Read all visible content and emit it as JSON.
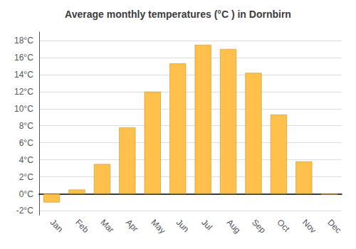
{
  "chart_data": {
    "type": "bar",
    "title": "Average monthly temperatures (°C ) in Dornbirn",
    "categories": [
      "Jan",
      "Feb",
      "Mar",
      "Apr",
      "May",
      "Jun",
      "Jul",
      "Aug",
      "Sep",
      "Oct",
      "Nov",
      "Dec"
    ],
    "values": [
      -1.0,
      0.5,
      3.5,
      7.8,
      12.0,
      15.3,
      17.5,
      17.0,
      14.2,
      9.3,
      3.8,
      -0.1
    ],
    "color": "#FFC04C",
    "ylim": [
      -2.5,
      19
    ],
    "yticks": [
      {
        "value": -2,
        "label": "-2°C"
      },
      {
        "value": 0,
        "label": "0°C"
      },
      {
        "value": 2,
        "label": "2°C"
      },
      {
        "value": 4,
        "label": "4°C"
      },
      {
        "value": 6,
        "label": "6°C"
      },
      {
        "value": 8,
        "label": "8°C"
      },
      {
        "value": 10,
        "label": "10°C"
      },
      {
        "value": 12,
        "label": "12°C"
      },
      {
        "value": 14,
        "label": "14°C"
      },
      {
        "value": 16,
        "label": "16°C"
      },
      {
        "value": 18,
        "label": "18°C"
      }
    ],
    "grid": true
  }
}
